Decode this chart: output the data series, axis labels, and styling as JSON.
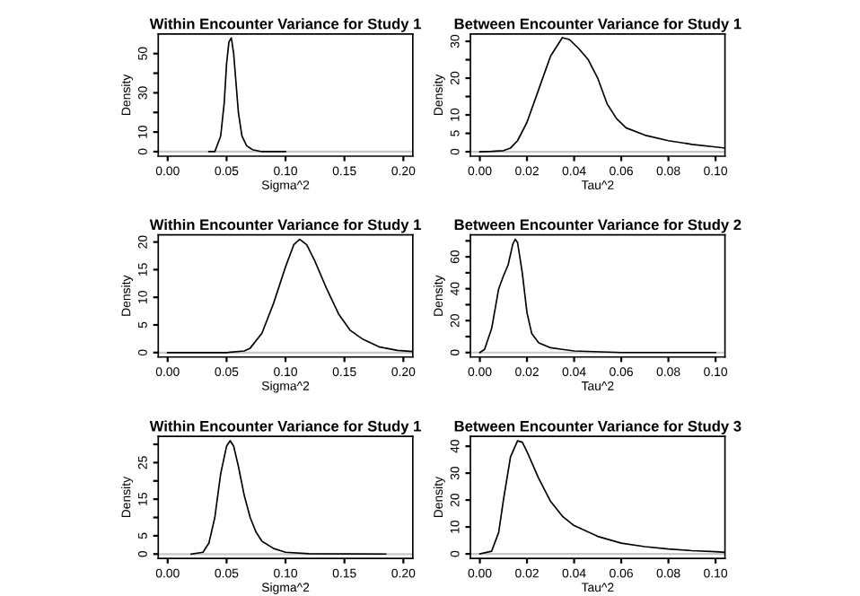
{
  "chart_data": [
    {
      "type": "line",
      "title": "Within Encounter Variance for Study 1",
      "xlabel": "Sigma^2",
      "ylabel": "Density",
      "xlim": [
        -0.008,
        0.208
      ],
      "xticks": [
        {
          "value": 0,
          "label": "0.00"
        },
        0.05,
        {
          "value": 0.1,
          "label": "0.10"
        },
        0.15,
        {
          "value": 0.2,
          "label": "0.20"
        }
      ],
      "ylim": [
        -2.3,
        60
      ],
      "yticks": [
        0,
        10,
        {
          "value": 20,
          "label": null
        },
        30,
        {
          "value": 40,
          "label": null
        },
        50
      ],
      "grid": false,
      "legend": false,
      "ref_lines": [
        {
          "axis": "y",
          "value": 0,
          "color": "#c8c8c8"
        }
      ],
      "series": [
        {
          "color": "#000000",
          "x": [
            0.035,
            0.04,
            0.045,
            0.048,
            0.05,
            0.052,
            0.054,
            0.056,
            0.058,
            0.06,
            0.063,
            0.067,
            0.072,
            0.08,
            0.1
          ],
          "values": [
            0,
            0,
            8,
            25,
            45,
            56,
            58,
            50,
            35,
            20,
            8,
            3,
            1,
            0,
            0
          ]
        }
      ]
    },
    {
      "type": "line",
      "title": "Between Encounter Variance for Study 1",
      "xlabel": "Tau^2",
      "ylabel": "Density",
      "xlim": [
        -0.004,
        0.104
      ],
      "xticks": [
        {
          "value": 0,
          "label": "0.00"
        },
        0.02,
        0.04,
        0.06,
        0.08,
        {
          "value": 0.1,
          "label": "0.10"
        }
      ],
      "ylim": [
        -1.2,
        32
      ],
      "yticks": [
        0,
        5,
        10,
        {
          "value": 15,
          "label": null
        },
        20,
        {
          "value": 25,
          "label": null
        },
        30
      ],
      "grid": false,
      "legend": false,
      "ref_lines": [
        {
          "axis": "y",
          "value": 0,
          "color": "#c8c8c8"
        }
      ],
      "series": [
        {
          "color": "#000000",
          "x": [
            0,
            0.005,
            0.01,
            0.013,
            0.016,
            0.02,
            0.025,
            0.03,
            0.035,
            0.038,
            0.042,
            0.046,
            0.05,
            0.054,
            0.058,
            0.062,
            0.07,
            0.08,
            0.09,
            0.1,
            0.104
          ],
          "values": [
            0,
            0.1,
            0.3,
            1,
            3,
            8,
            17,
            26,
            31,
            30.5,
            28,
            25,
            20,
            13,
            9,
            6.5,
            4.5,
            3,
            2,
            1.3,
            1
          ]
        }
      ]
    },
    {
      "type": "line",
      "title": "Within Encounter Variance for Study 1",
      "xlabel": "Sigma^2",
      "ylabel": "Density",
      "xlim": [
        -0.008,
        0.208
      ],
      "xticks": [
        {
          "value": 0,
          "label": "0.00"
        },
        0.05,
        {
          "value": 0.1,
          "label": "0.10"
        },
        0.15,
        {
          "value": 0.2,
          "label": "0.20"
        }
      ],
      "ylim": [
        -0.8,
        21.3
      ],
      "yticks": [
        0,
        5,
        10,
        15,
        20
      ],
      "grid": false,
      "legend": false,
      "ref_lines": [
        {
          "axis": "y",
          "value": 0,
          "color": "#c8c8c8"
        }
      ],
      "series": [
        {
          "color": "#000000",
          "x": [
            0,
            0.05,
            0.065,
            0.07,
            0.08,
            0.09,
            0.1,
            0.107,
            0.112,
            0.118,
            0.125,
            0.135,
            0.145,
            0.155,
            0.165,
            0.18,
            0.195,
            0.208
          ],
          "values": [
            0,
            0,
            0.3,
            0.8,
            3.5,
            9,
            15.5,
            19.5,
            20.5,
            19.5,
            16.5,
            11.5,
            7,
            4,
            2.5,
            1,
            0.4,
            0.2
          ]
        }
      ]
    },
    {
      "type": "line",
      "title": "Between Encounter Variance for Study 2",
      "xlabel": "Tau^2",
      "ylabel": "Density",
      "xlim": [
        -0.004,
        0.104
      ],
      "xticks": [
        {
          "value": 0,
          "label": "0.00"
        },
        0.02,
        0.04,
        0.06,
        0.08,
        {
          "value": 0.1,
          "label": "0.10"
        }
      ],
      "ylim": [
        -2.8,
        73.8
      ],
      "yticks": [
        0,
        {
          "value": 10,
          "label": null
        },
        20,
        {
          "value": 30,
          "label": null
        },
        40,
        {
          "value": 50,
          "label": null
        },
        60,
        {
          "value": 70,
          "label": null
        }
      ],
      "grid": false,
      "legend": false,
      "ref_lines": [
        {
          "axis": "y",
          "value": 0,
          "color": "#c8c8c8"
        }
      ],
      "series": [
        {
          "color": "#000000",
          "x": [
            0,
            0.002,
            0.005,
            0.008,
            0.01,
            0.012,
            0.014,
            0.015,
            0.016,
            0.018,
            0.02,
            0.022,
            0.025,
            0.03,
            0.035,
            0.04,
            0.06,
            0.1
          ],
          "values": [
            0,
            2,
            15,
            40,
            48,
            55,
            68,
            71,
            69,
            50,
            25,
            12,
            6,
            3,
            2,
            1,
            0,
            0
          ]
        }
      ]
    },
    {
      "type": "line",
      "title": "Within Encounter Variance for Study 1",
      "xlabel": "Sigma^2",
      "ylabel": "Density",
      "xlim": [
        -0.008,
        0.208
      ],
      "xticks": [
        {
          "value": 0,
          "label": "0.00"
        },
        0.05,
        {
          "value": 0.1,
          "label": "0.10"
        },
        0.15,
        {
          "value": 0.2,
          "label": "0.20"
        }
      ],
      "ylim": [
        -1.2,
        32.2
      ],
      "yticks": [
        0,
        5,
        {
          "value": 10,
          "label": null
        },
        15,
        {
          "value": 20,
          "label": null
        },
        25,
        {
          "value": 30,
          "label": null
        }
      ],
      "grid": false,
      "legend": false,
      "ref_lines": [
        {
          "axis": "y",
          "value": 0,
          "color": "#c8c8c8"
        }
      ],
      "series": [
        {
          "color": "#000000",
          "x": [
            0.02,
            0.03,
            0.035,
            0.04,
            0.045,
            0.05,
            0.053,
            0.056,
            0.06,
            0.065,
            0.07,
            0.075,
            0.08,
            0.09,
            0.1,
            0.12,
            0.185
          ],
          "values": [
            0,
            0.5,
            3,
            10,
            22,
            29.5,
            31,
            29.5,
            24,
            16,
            10,
            6,
            3.5,
            1.5,
            0.5,
            0.1,
            0
          ]
        }
      ]
    },
    {
      "type": "line",
      "title": "Between Encounter Variance for Study 3",
      "xlabel": "Tau^2",
      "ylabel": "Density",
      "xlim": [
        -0.004,
        0.104
      ],
      "xticks": [
        {
          "value": 0,
          "label": "0.00"
        },
        0.02,
        0.04,
        0.06,
        0.08,
        {
          "value": 0.1,
          "label": "0.10"
        }
      ],
      "ylim": [
        -1.7,
        43.7
      ],
      "yticks": [
        0,
        10,
        20,
        30,
        40
      ],
      "grid": false,
      "legend": false,
      "ref_lines": [
        {
          "axis": "y",
          "value": 0,
          "color": "#c8c8c8"
        }
      ],
      "series": [
        {
          "color": "#000000",
          "x": [
            0,
            0.005,
            0.008,
            0.01,
            0.013,
            0.016,
            0.018,
            0.02,
            0.025,
            0.03,
            0.035,
            0.04,
            0.05,
            0.06,
            0.07,
            0.08,
            0.09,
            0.1,
            0.104
          ],
          "values": [
            0,
            1,
            8,
            20,
            36,
            42,
            41.5,
            38,
            28,
            19.5,
            14,
            10.5,
            6.5,
            4,
            2.7,
            1.8,
            1.2,
            0.8,
            0.6
          ]
        }
      ]
    }
  ]
}
